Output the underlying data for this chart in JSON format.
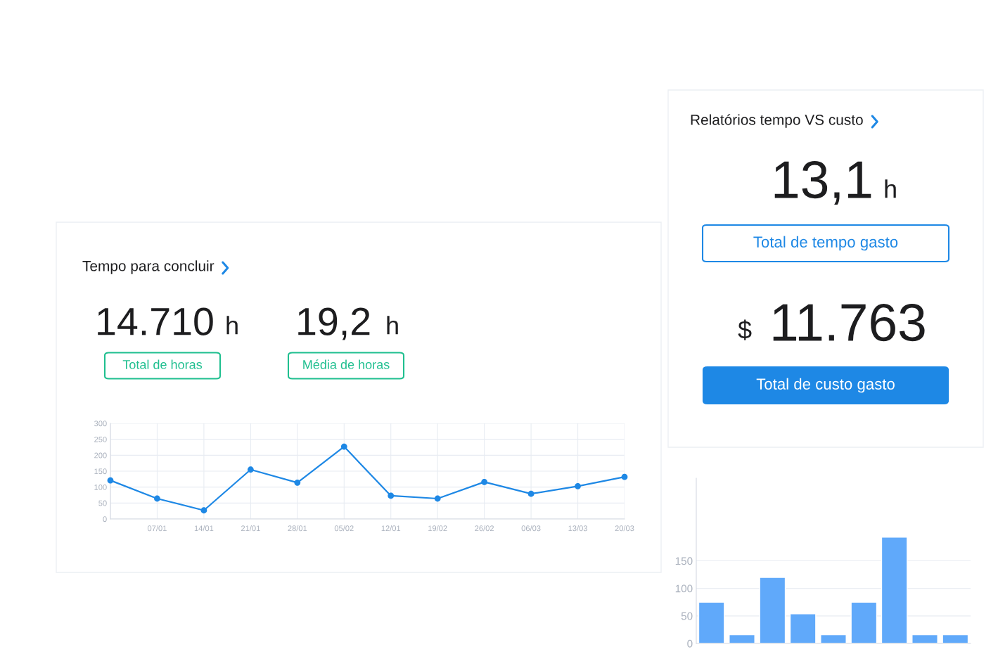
{
  "chart_data": [
    {
      "type": "other",
      "title": "Tempo para concluir",
      "annotations": [
        "14.710",
        "h",
        "Total de horas",
        "19,2",
        "h",
        "Média de horas"
      ]
    },
    {
      "type": "line",
      "categories": [
        null,
        "07/01",
        "14/01",
        "21/01",
        "28/01",
        "05/02",
        "12/01",
        "19/02",
        "26/02",
        "06/03",
        "13/03",
        "20/03"
      ],
      "series": [
        {
          "color": "#1e88e5",
          "values": [
            121,
            64,
            27,
            155,
            114,
            227,
            73,
            64,
            116,
            79,
            103,
            132
          ]
        }
      ],
      "ylim": [
        0,
        300
      ],
      "yticks": [
        0,
        50,
        100,
        150,
        200,
        250,
        300
      ],
      "grid": true,
      "marker": "circle",
      "line_style": "solid"
    },
    {
      "type": "other",
      "title": "Relatórios tempo VS custo",
      "annotations": [
        "13,1",
        "h",
        "Total de tempo gasto",
        "$",
        "11.763",
        "Total de custo gasto"
      ]
    },
    {
      "type": "bar",
      "categories": [
        null,
        null,
        null,
        null,
        null,
        null,
        null,
        null,
        null
      ],
      "series": [
        {
          "color": "#60a9fa",
          "values": [
            75,
            16,
            120,
            54,
            16,
            75,
            193,
            16,
            16
          ]
        }
      ],
      "ylim": [
        0,
        300
      ],
      "yticks": [
        0,
        50,
        100,
        150
      ],
      "grid": "y"
    }
  ]
}
